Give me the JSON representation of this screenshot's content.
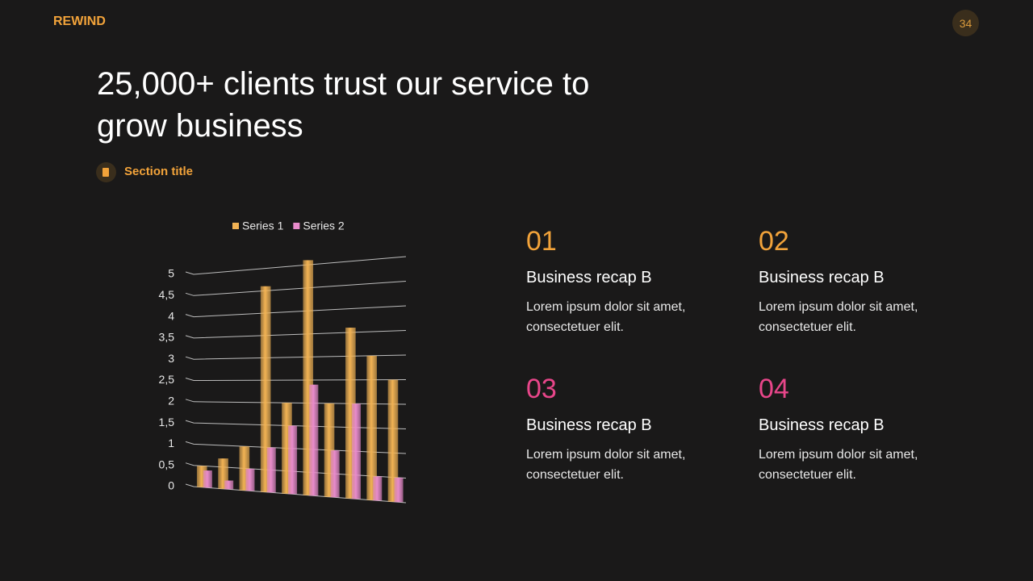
{
  "header": {
    "brand": "REWIND",
    "page_number": "34"
  },
  "title": "25,000+ clients trust our service to grow business",
  "section_title": "Section title",
  "cards": [
    {
      "number": "01",
      "heading": "Business recap B",
      "body": "Lorem ipsum dolor sit amet, consectetuer elit."
    },
    {
      "number": "02",
      "heading": "Business recap B",
      "body": "Lorem ipsum dolor sit amet, consectetuer elit."
    },
    {
      "number": "03",
      "heading": "Business recap B",
      "body": "Lorem ipsum dolor sit amet, consectetuer elit."
    },
    {
      "number": "04",
      "heading": "Business recap B",
      "body": "Lorem ipsum dolor sit amet, consectetuer elit."
    }
  ],
  "chart_data": {
    "type": "bar3d",
    "categories": [
      null,
      null,
      null,
      null,
      null,
      null,
      null,
      null,
      null,
      null
    ],
    "series": [
      {
        "name": "Series 1",
        "color": "#f2b354",
        "values": [
          0.5,
          0.7,
          1.0,
          4.6,
          2.0,
          5.1,
          2.0,
          3.6,
          3.0,
          2.5
        ]
      },
      {
        "name": "Series 2",
        "color": "#e98ccc",
        "values": [
          0.4,
          0.2,
          0.5,
          1.0,
          1.5,
          2.4,
          1.0,
          2.0,
          0.5,
          0.5
        ]
      }
    ],
    "ylim": [
      0,
      5
    ],
    "yticks": [
      0,
      {
        "value": 0.5,
        "label": "0,5"
      },
      1,
      {
        "value": 1.5,
        "label": "1,5"
      },
      2,
      {
        "value": 2.5,
        "label": "2,5"
      },
      3,
      {
        "value": 3.5,
        "label": "3,5"
      },
      4,
      {
        "value": 4.5,
        "label": "4,5"
      },
      5
    ],
    "grid": true,
    "legend": "top"
  }
}
